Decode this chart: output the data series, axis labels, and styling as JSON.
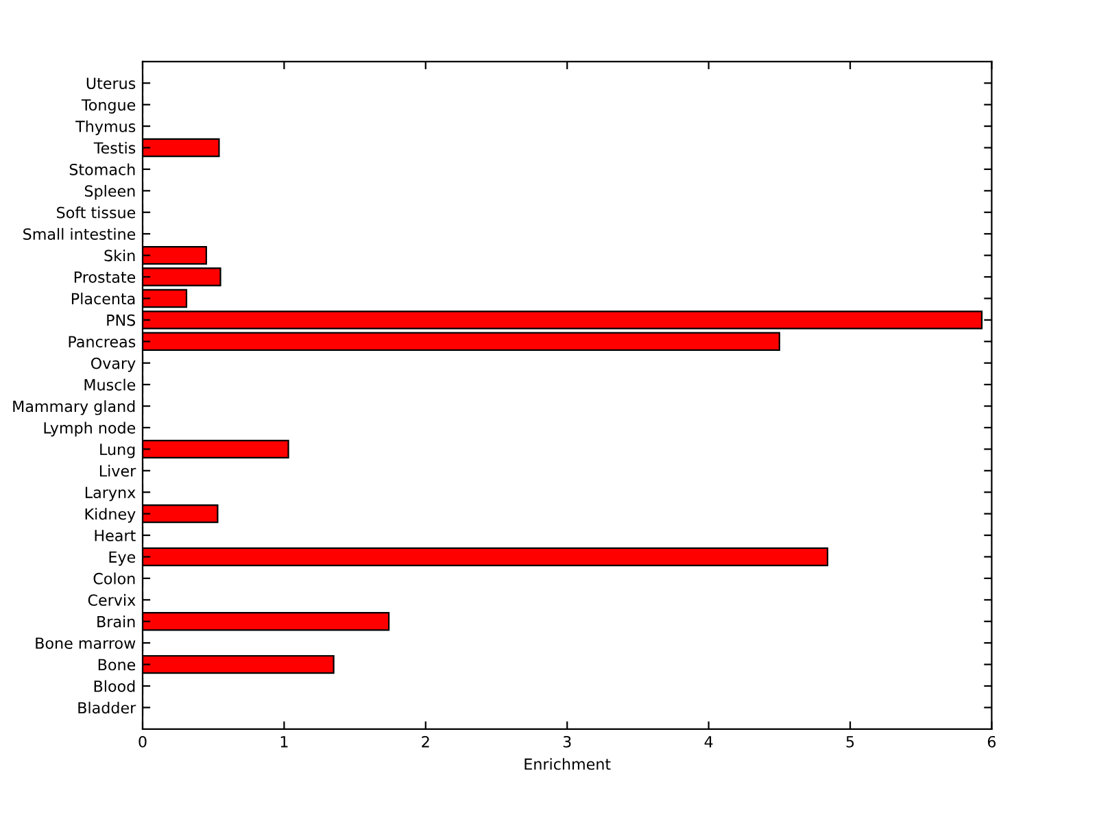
{
  "chart_data": {
    "type": "bar",
    "orientation": "horizontal",
    "xlabel": "Enrichment",
    "categories": [
      "Uterus",
      "Tongue",
      "Thymus",
      "Testis",
      "Stomach",
      "Spleen",
      "Soft tissue",
      "Small intestine",
      "Skin",
      "Prostate",
      "Placenta",
      "PNS",
      "Pancreas",
      "Ovary",
      "Muscle",
      "Mammary gland",
      "Lymph node",
      "Lung",
      "Liver",
      "Larynx",
      "Kidney",
      "Heart",
      "Eye",
      "Colon",
      "Cervix",
      "Brain",
      "Bone marrow",
      "Bone",
      "Blood",
      "Bladder"
    ],
    "values": [
      0,
      0,
      0,
      0.54,
      0,
      0,
      0,
      0,
      0.45,
      0.55,
      0.31,
      5.93,
      4.5,
      0,
      0,
      0,
      0,
      1.03,
      0,
      0,
      0.53,
      0,
      4.84,
      0,
      0,
      1.74,
      0,
      1.35,
      0,
      0
    ],
    "color": "#ff0000",
    "xlim": [
      0,
      6
    ],
    "xticks": [
      0,
      1,
      2,
      3,
      4,
      5,
      6
    ],
    "grid": false,
    "legend": false
  }
}
